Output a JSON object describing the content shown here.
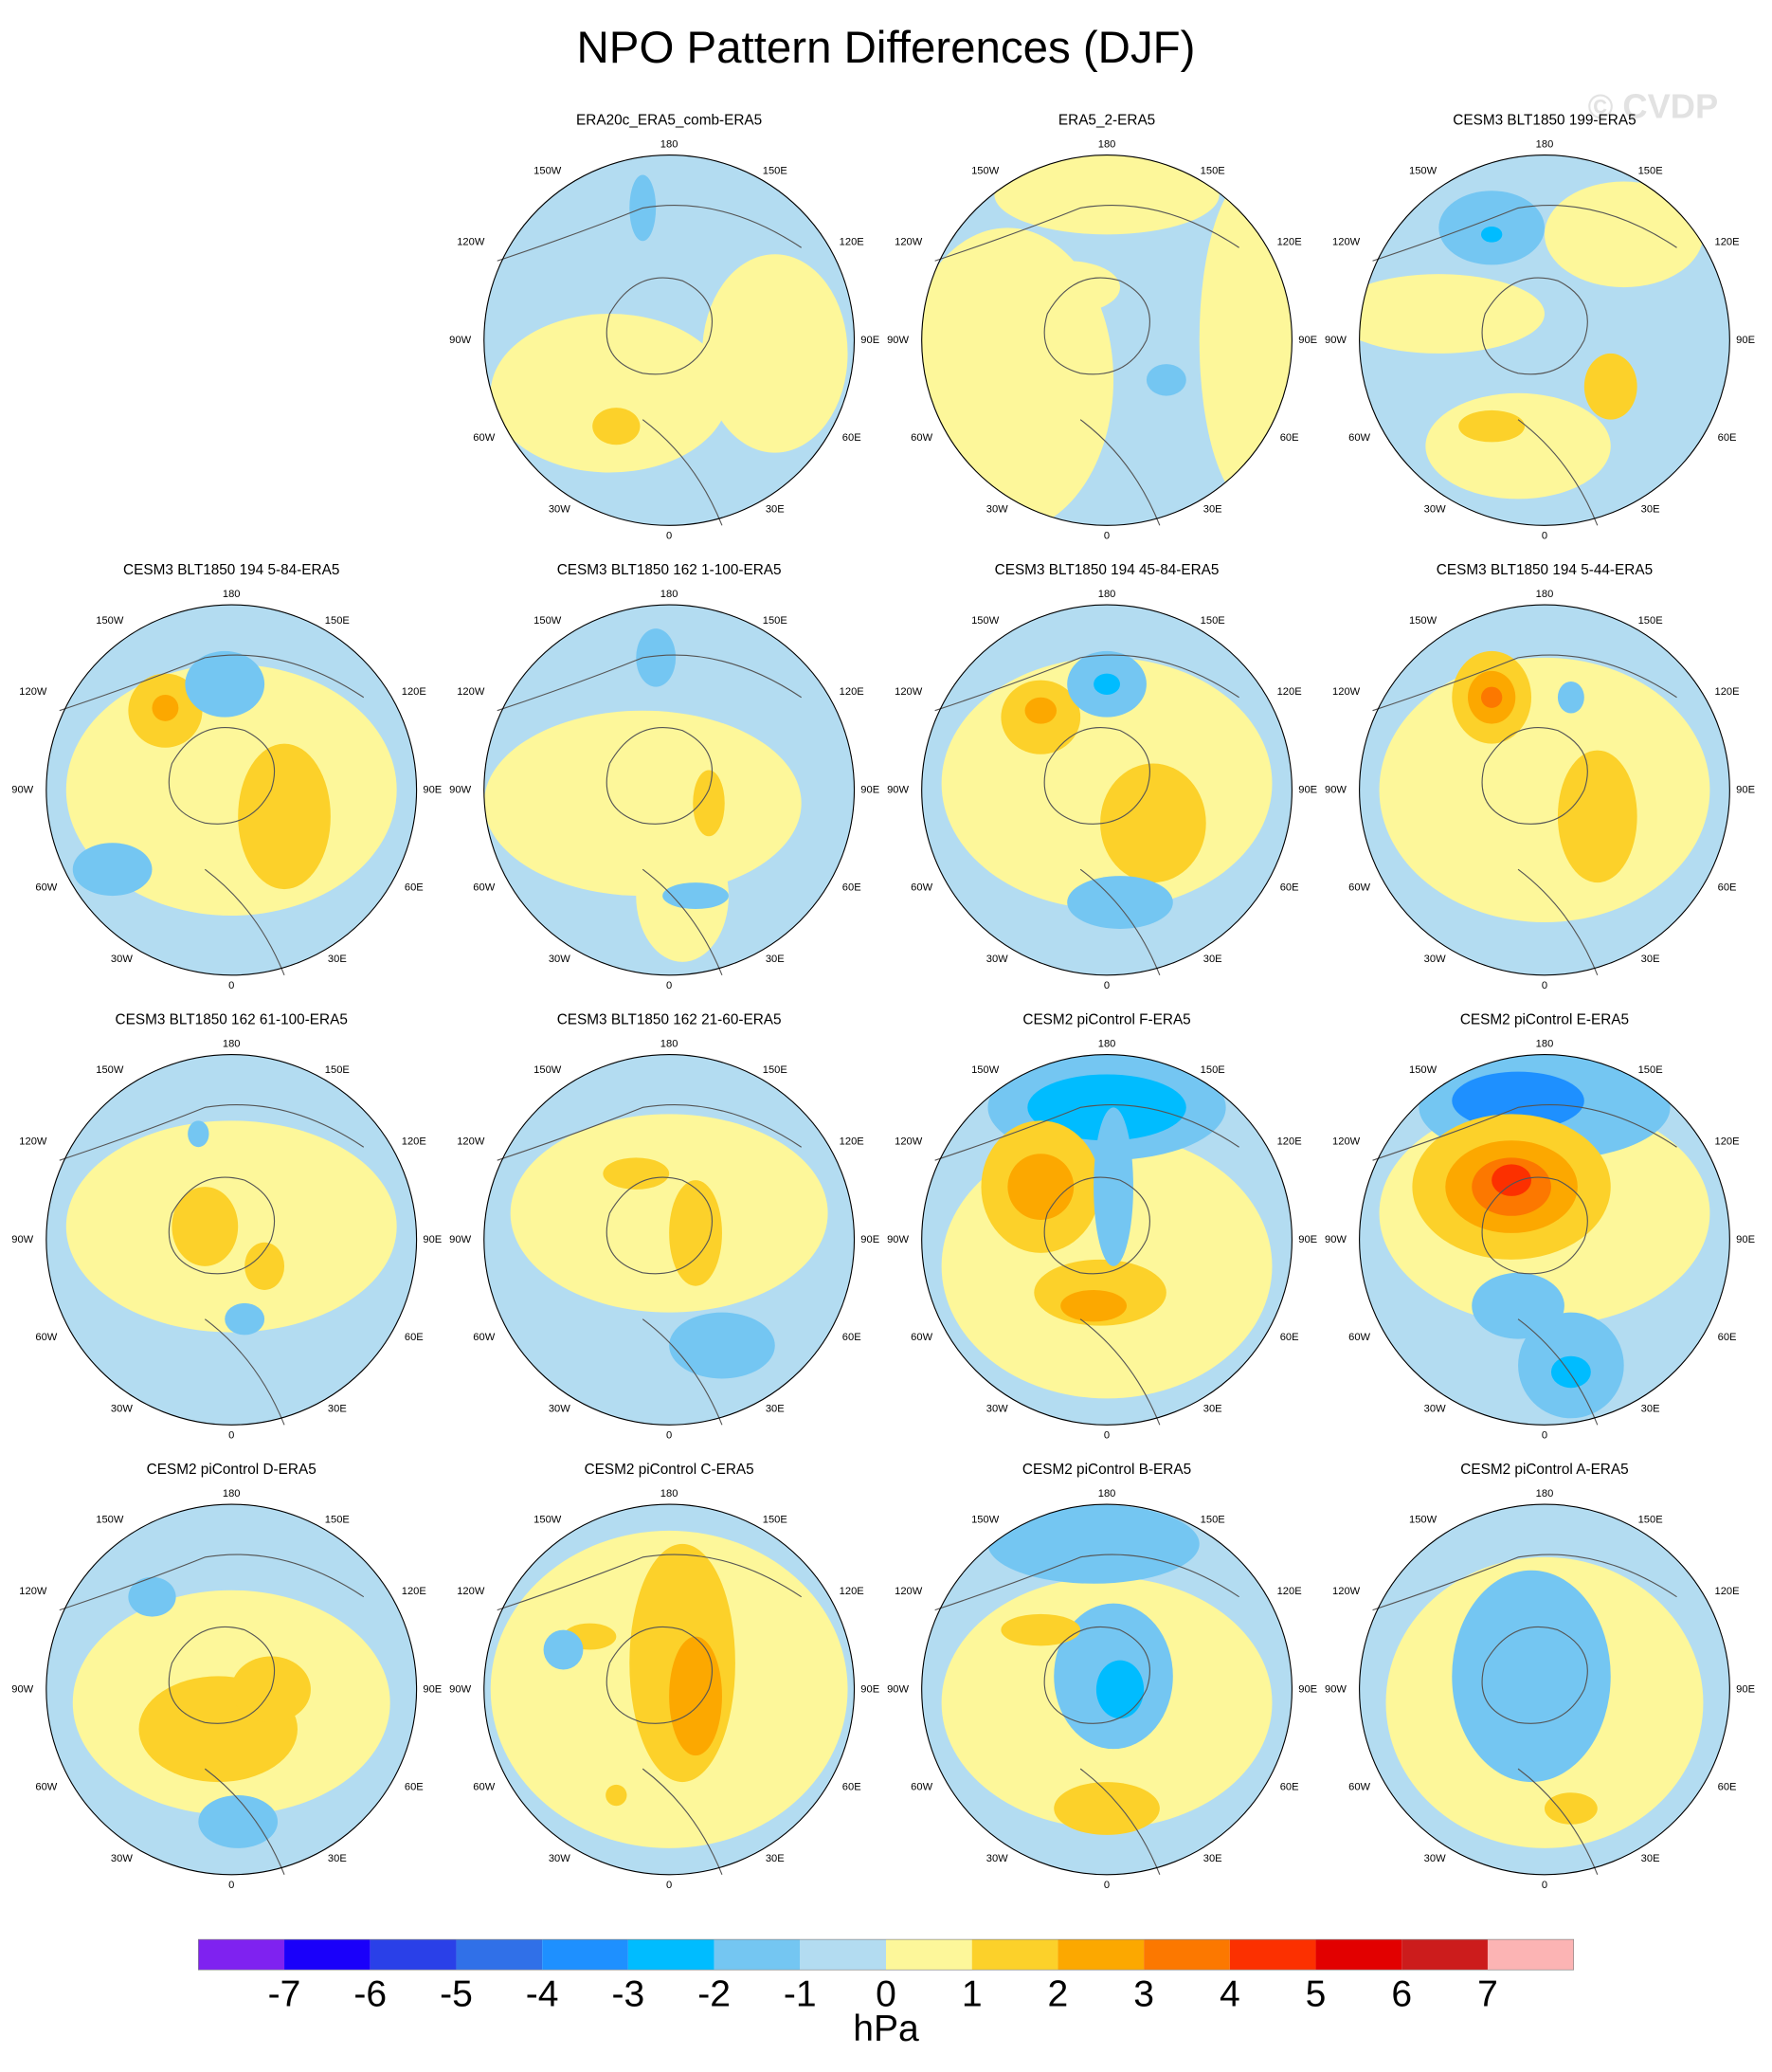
{
  "title": "NPO Pattern Differences (DJF)",
  "watermark": "© CVDP",
  "panels": [
    {
      "title": "ERA20c_ERA5_comb-ERA5"
    },
    {
      "title": "ERA5_2-ERA5"
    },
    {
      "title": "CESM3 BLT1850 199-ERA5"
    },
    {
      "title": "CESM3 BLT1850 194 5-84-ERA5"
    },
    {
      "title": "CESM3 BLT1850 162 1-100-ERA5"
    },
    {
      "title": "CESM3 BLT1850 194 45-84-ERA5"
    },
    {
      "title": "CESM3 BLT1850 194 5-44-ERA5"
    },
    {
      "title": "CESM3 BLT1850 162 61-100-ERA5"
    },
    {
      "title": "CESM3 BLT1850 162 21-60-ERA5"
    },
    {
      "title": "CESM2 piControl F-ERA5"
    },
    {
      "title": "CESM2 piControl E-ERA5"
    },
    {
      "title": "CESM2 piControl D-ERA5"
    },
    {
      "title": "CESM2 piControl C-ERA5"
    },
    {
      "title": "CESM2 piControl B-ERA5"
    },
    {
      "title": "CESM2 piControl A-ERA5"
    }
  ],
  "longitude_labels": [
    "180",
    "150W",
    "150E",
    "120W",
    "120E",
    "90W",
    "90E",
    "60W",
    "60E",
    "30W",
    "30E",
    "0"
  ],
  "colorbar": {
    "colors": [
      "#7f22f0",
      "#1a00fa",
      "#2a40e8",
      "#3070e8",
      "#1e90ff",
      "#00bcff",
      "#74c6f2",
      "#b3dcf1",
      "#fdf79a",
      "#fcd12a",
      "#fca800",
      "#fc7800",
      "#fc3000",
      "#e20000",
      "#cc1c1c",
      "#fcb4b4"
    ],
    "ticks": [
      -7,
      -6,
      -5,
      -4,
      -3,
      -2,
      -1,
      0,
      1,
      2,
      3,
      4,
      5,
      6,
      7
    ],
    "unit": "hPa"
  }
}
